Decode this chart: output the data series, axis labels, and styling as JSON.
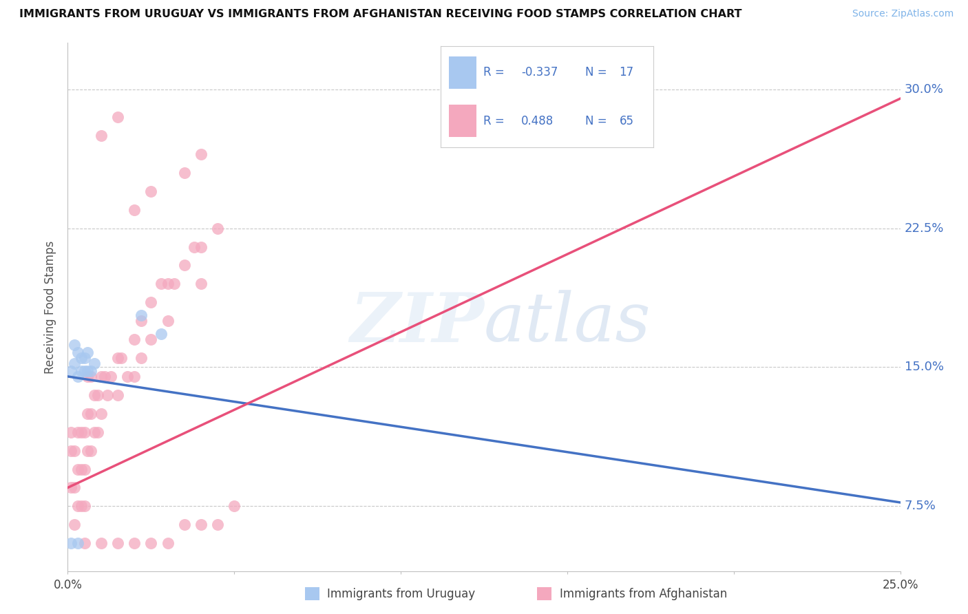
{
  "title": "IMMIGRANTS FROM URUGUAY VS IMMIGRANTS FROM AFGHANISTAN RECEIVING FOOD STAMPS CORRELATION CHART",
  "source": "Source: ZipAtlas.com",
  "ylabel": "Receiving Food Stamps",
  "ytick_labels": [
    "7.5%",
    "15.0%",
    "22.5%",
    "30.0%"
  ],
  "ytick_values": [
    0.075,
    0.15,
    0.225,
    0.3
  ],
  "xlim": [
    0.0,
    0.25
  ],
  "ylim": [
    0.04,
    0.325
  ],
  "legend_blue_r": "-0.337",
  "legend_blue_n": "17",
  "legend_pink_r": "0.488",
  "legend_pink_n": "65",
  "legend_label_blue": "Immigrants from Uruguay",
  "legend_label_pink": "Immigrants from Afghanistan",
  "blue_color": "#A8C8F0",
  "pink_color": "#F4A8BE",
  "blue_line_color": "#4472C4",
  "pink_line_color": "#E8507A",
  "blue_line_y0": 0.145,
  "blue_line_y1": 0.077,
  "pink_line_y0": 0.085,
  "pink_line_y1": 0.295,
  "blue_scatter_x": [
    0.001,
    0.002,
    0.002,
    0.003,
    0.003,
    0.004,
    0.004,
    0.005,
    0.005,
    0.006,
    0.006,
    0.007,
    0.008,
    0.022,
    0.028,
    0.001,
    0.003
  ],
  "blue_scatter_y": [
    0.148,
    0.152,
    0.162,
    0.145,
    0.158,
    0.148,
    0.155,
    0.148,
    0.155,
    0.148,
    0.158,
    0.148,
    0.152,
    0.178,
    0.168,
    0.055,
    0.055
  ],
  "pink_scatter_x": [
    0.001,
    0.001,
    0.001,
    0.002,
    0.002,
    0.002,
    0.003,
    0.003,
    0.003,
    0.004,
    0.004,
    0.004,
    0.005,
    0.005,
    0.005,
    0.006,
    0.006,
    0.006,
    0.007,
    0.007,
    0.007,
    0.008,
    0.008,
    0.009,
    0.009,
    0.01,
    0.01,
    0.011,
    0.012,
    0.013,
    0.015,
    0.015,
    0.016,
    0.018,
    0.02,
    0.02,
    0.022,
    0.022,
    0.025,
    0.025,
    0.028,
    0.03,
    0.03,
    0.032,
    0.035,
    0.038,
    0.04,
    0.04,
    0.045,
    0.005,
    0.01,
    0.015,
    0.02,
    0.025,
    0.03,
    0.035,
    0.04,
    0.045,
    0.05,
    0.02,
    0.025,
    0.035,
    0.04,
    0.01,
    0.015
  ],
  "pink_scatter_y": [
    0.115,
    0.105,
    0.085,
    0.105,
    0.085,
    0.065,
    0.115,
    0.095,
    0.075,
    0.115,
    0.095,
    0.075,
    0.115,
    0.095,
    0.075,
    0.145,
    0.125,
    0.105,
    0.145,
    0.125,
    0.105,
    0.135,
    0.115,
    0.135,
    0.115,
    0.145,
    0.125,
    0.145,
    0.135,
    0.145,
    0.155,
    0.135,
    0.155,
    0.145,
    0.165,
    0.145,
    0.175,
    0.155,
    0.185,
    0.165,
    0.195,
    0.195,
    0.175,
    0.195,
    0.205,
    0.215,
    0.215,
    0.195,
    0.225,
    0.055,
    0.055,
    0.055,
    0.055,
    0.055,
    0.055,
    0.065,
    0.065,
    0.065,
    0.075,
    0.235,
    0.245,
    0.255,
    0.265,
    0.275,
    0.285
  ]
}
